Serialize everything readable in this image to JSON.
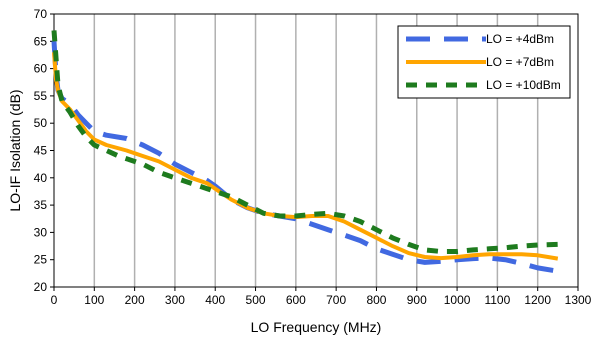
{
  "chart_data": {
    "type": "line",
    "title": "",
    "xlabel": "LO Frequency (MHz)",
    "ylabel": "LO-IF Isolation (dB)",
    "xlim": [
      0,
      1300
    ],
    "ylim": [
      20,
      70
    ],
    "xticks": [
      0,
      100,
      200,
      300,
      400,
      500,
      600,
      700,
      800,
      900,
      1000,
      1100,
      1200,
      1300
    ],
    "yticks": [
      20,
      25,
      30,
      35,
      40,
      45,
      50,
      55,
      60,
      65,
      70
    ],
    "grid": "vertical",
    "legend_position": "top-right",
    "series": [
      {
        "name": "LO = +4dBm",
        "color": "#4169e1",
        "style": "long-dash",
        "x": [
          0,
          5,
          10,
          20,
          40,
          60,
          80,
          100,
          130,
          180,
          220,
          260,
          300,
          340,
          380,
          400,
          440,
          480,
          520,
          560,
          600,
          640,
          680,
          720,
          760,
          800,
          840,
          880,
          920,
          960,
          1000,
          1040,
          1080,
          1120,
          1160,
          1200,
          1250
        ],
        "y": [
          65,
          59,
          56,
          54.5,
          53.5,
          51.5,
          50,
          48.5,
          47.8,
          47.2,
          46,
          44.5,
          42.5,
          41,
          39.5,
          38.5,
          36,
          34.5,
          33.5,
          33,
          32.5,
          31.5,
          30.5,
          29.5,
          28.5,
          27,
          26,
          25,
          24.5,
          24.7,
          25,
          25.2,
          25.3,
          25,
          24.3,
          23.5,
          22.9
        ]
      },
      {
        "name": "LO = +7dBm",
        "color": "#ffa500",
        "style": "solid",
        "x": [
          0,
          5,
          10,
          20,
          40,
          60,
          80,
          100,
          130,
          180,
          220,
          260,
          300,
          340,
          380,
          400,
          440,
          480,
          520,
          560,
          600,
          640,
          680,
          720,
          760,
          800,
          840,
          880,
          920,
          960,
          1000,
          1040,
          1080,
          1120,
          1160,
          1200,
          1250
        ],
        "y": [
          63,
          58,
          56,
          54,
          52.5,
          50.5,
          48.5,
          47,
          46,
          45,
          44,
          43,
          41.5,
          40,
          39,
          38,
          36,
          34.5,
          33.5,
          33,
          32.8,
          33,
          33,
          32,
          30.5,
          29,
          27.5,
          26.2,
          25.5,
          25.3,
          25.5,
          25.8,
          26,
          26,
          26,
          25.8,
          25.2
        ]
      },
      {
        "name": "LO = +10dBm",
        "color": "#1e7b1e",
        "style": "short-dash",
        "x": [
          0,
          5,
          10,
          20,
          40,
          60,
          80,
          100,
          130,
          160,
          180,
          220,
          260,
          300,
          340,
          380,
          400,
          440,
          480,
          520,
          560,
          600,
          640,
          680,
          720,
          760,
          800,
          840,
          880,
          920,
          960,
          1000,
          1040,
          1080,
          1120,
          1160,
          1200,
          1250
        ],
        "y": [
          67,
          62,
          57,
          54,
          52,
          49.5,
          47.5,
          46,
          45,
          44,
          43.5,
          42.5,
          41,
          40,
          39,
          38,
          37.5,
          36.5,
          35,
          33.5,
          33,
          33,
          33.3,
          33.5,
          33,
          32,
          30.5,
          29,
          27.8,
          26.8,
          26.5,
          26.5,
          26.8,
          27,
          27.2,
          27.5,
          27.7,
          27.8
        ]
      }
    ]
  }
}
